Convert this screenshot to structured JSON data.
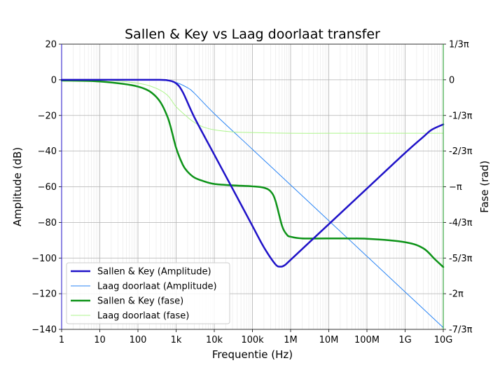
{
  "chart_data": {
    "type": "line",
    "title": "Sallen & Key vs Laag doorlaat transfer",
    "xlabel": "Frequentie (Hz)",
    "ylabel_left": "Amplitude (dB)",
    "ylabel_right": "Fase (rad)",
    "x_scale": "log",
    "xlim": [
      1,
      10000000000
    ],
    "ylim_left": [
      -140,
      20
    ],
    "ylim_right": [
      -7.3304,
      1.0472
    ],
    "x_ticks": [
      {
        "value": 1,
        "label": "1"
      },
      {
        "value": 10,
        "label": "10"
      },
      {
        "value": 100,
        "label": "100"
      },
      {
        "value": 1000,
        "label": "1k"
      },
      {
        "value": 10000,
        "label": "10k"
      },
      {
        "value": 100000,
        "label": "100k"
      },
      {
        "value": 1000000,
        "label": "1M"
      },
      {
        "value": 10000000,
        "label": "10M"
      },
      {
        "value": 100000000,
        "label": "100M"
      },
      {
        "value": 1000000000,
        "label": "1G"
      },
      {
        "value": 10000000000,
        "label": "10G"
      }
    ],
    "y_left_ticks": [
      {
        "value": 20,
        "label": "20"
      },
      {
        "value": 0,
        "label": "0"
      },
      {
        "value": -20,
        "label": "−20"
      },
      {
        "value": -40,
        "label": "−40"
      },
      {
        "value": -60,
        "label": "−60"
      },
      {
        "value": -80,
        "label": "−80"
      },
      {
        "value": -100,
        "label": "−100"
      },
      {
        "value": -120,
        "label": "−120"
      },
      {
        "value": -140,
        "label": "−140"
      }
    ],
    "y_right_ticks": [
      {
        "value": 1.0472,
        "label": "1/3π"
      },
      {
        "value": 0,
        "label": "0"
      },
      {
        "value": -1.0472,
        "label": "-1/3π"
      },
      {
        "value": -2.0944,
        "label": "-2/3π"
      },
      {
        "value": -3.1416,
        "label": "−π"
      },
      {
        "value": -4.1888,
        "label": "-4/3π"
      },
      {
        "value": -5.236,
        "label": "-5/3π"
      },
      {
        "value": -6.2832,
        "label": "-2π"
      },
      {
        "value": -7.3304,
        "label": "-7/3π"
      }
    ],
    "grid": true,
    "legend_position": "lower-left",
    "series": [
      {
        "name": "Sallen & Key (Amplitude)",
        "axis": "left",
        "color": "#1f12c8",
        "width": 2.5,
        "x": [
          1,
          10,
          100,
          300,
          600,
          1000,
          1500,
          3000,
          10000,
          30000,
          100000,
          200000,
          400000,
          550000,
          700000,
          1000000,
          10000000,
          100000000,
          1000000000,
          3000000000,
          5000000000,
          10000000000
        ],
        "y": [
          0,
          0,
          0,
          0,
          -0.3,
          -2,
          -7,
          -21,
          -42,
          -61,
          -82,
          -94,
          -103.5,
          -104.8,
          -104,
          -101,
          -81,
          -61,
          -41,
          -32,
          -28,
          -25
        ]
      },
      {
        "name": "Laag doorlaat (Amplitude)",
        "axis": "left",
        "color": "#2a85f5",
        "width": 1,
        "x": [
          1,
          100,
          500,
          1000,
          2000,
          3000,
          10000,
          100000,
          1000000,
          10000000,
          100000000,
          1000000000,
          10000000000
        ],
        "y": [
          0,
          0,
          -0.4,
          -1.5,
          -4.5,
          -7.5,
          -19,
          -39,
          -59,
          -79,
          -99,
          -119,
          -139
        ]
      },
      {
        "name": "Sallen & Key (fase)",
        "axis": "right",
        "color": "#0d9318",
        "width": 2.5,
        "x": [
          1,
          10,
          100,
          300,
          600,
          1000,
          1500,
          2000,
          3000,
          5000,
          10000,
          30000,
          100000,
          200000,
          300000,
          400000,
          600000,
          800000,
          1000000,
          2000000,
          10000000,
          100000000,
          1000000000,
          3000000000,
          6000000000,
          10000000000
        ],
        "y": [
          -0.02,
          -0.05,
          -0.2,
          -0.5,
          -1.1,
          -2.0,
          -2.5,
          -2.7,
          -2.87,
          -2.97,
          -3.06,
          -3.1,
          -3.13,
          -3.17,
          -3.28,
          -3.55,
          -4.3,
          -4.55,
          -4.61,
          -4.66,
          -4.66,
          -4.67,
          -4.77,
          -4.95,
          -5.27,
          -5.5
        ]
      },
      {
        "name": "Laag doorlaat (fase)",
        "axis": "right",
        "color": "#aef58c",
        "width": 1,
        "x": [
          1,
          10,
          100,
          300,
          600,
          1000,
          2000,
          3000,
          5000,
          10000,
          30000,
          100000,
          1000000,
          10000000,
          100000000,
          1000000000,
          10000000000
        ],
        "y": [
          0,
          0,
          -0.1,
          -0.25,
          -0.46,
          -0.79,
          -1.1,
          -1.25,
          -1.38,
          -1.47,
          -1.53,
          -1.55,
          -1.57,
          -1.57,
          -1.57,
          -1.57,
          -1.57
        ]
      }
    ]
  }
}
